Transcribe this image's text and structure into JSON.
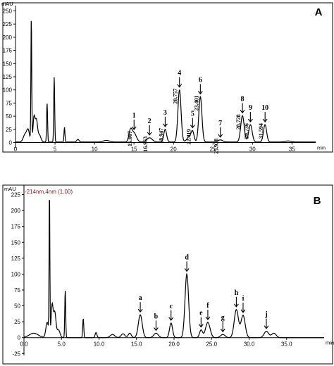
{
  "chart_data": [
    {
      "type": "line",
      "panel_label": "A",
      "ylabel": "mAU",
      "xlabel": "min",
      "xlim": [
        0,
        38
      ],
      "ylim": [
        -10,
        260
      ],
      "x_ticks": [
        0,
        5,
        10,
        15,
        20,
        25,
        30,
        35
      ],
      "x_tick_labels": [
        "0",
        "5",
        "10",
        "15",
        "20",
        "25",
        "30",
        "35"
      ],
      "y_ticks": [
        0,
        25,
        50,
        75,
        100,
        125,
        150,
        175,
        200,
        225,
        250
      ],
      "y_tick_labels": [
        "0",
        "25",
        "50",
        "75",
        "100",
        "125",
        "150",
        "175",
        "200",
        "225",
        "250"
      ],
      "baseline": 1,
      "peaks": [
        {
          "t": 1.2,
          "h": 14,
          "w": 0.22
        },
        {
          "t": 1.6,
          "h": 22,
          "w": 0.18
        },
        {
          "t": 2.0,
          "h": 238,
          "w": 0.05
        },
        {
          "t": 2.35,
          "h": 48,
          "w": 0.13
        },
        {
          "t": 2.65,
          "h": 38,
          "w": 0.13
        },
        {
          "t": 3.0,
          "h": 14,
          "w": 0.2
        },
        {
          "t": 4.0,
          "h": 74,
          "w": 0.06
        },
        {
          "t": 4.9,
          "h": 123,
          "w": 0.06
        },
        {
          "t": 6.2,
          "h": 28,
          "w": 0.06
        },
        {
          "t": 7.9,
          "h": 5,
          "w": 0.15
        },
        {
          "t": 11.5,
          "h": 3,
          "w": 0.4
        },
        {
          "t": 14.55,
          "h": 20,
          "w": 0.2
        },
        {
          "t": 15.0,
          "h": 17,
          "w": 0.3
        },
        {
          "t": 16.96,
          "h": 8,
          "w": 0.35
        },
        {
          "t": 18.95,
          "h": 24,
          "w": 0.18
        },
        {
          "t": 20.76,
          "h": 99,
          "w": 0.2
        },
        {
          "t": 22.0,
          "h": 10,
          "w": 0.3
        },
        {
          "t": 22.42,
          "h": 18,
          "w": 0.18
        },
        {
          "t": 23.4,
          "h": 86,
          "w": 0.2
        },
        {
          "t": 25.93,
          "h": 4,
          "w": 0.3
        },
        {
          "t": 28.73,
          "h": 50,
          "w": 0.22
        },
        {
          "t": 29.74,
          "h": 33,
          "w": 0.22
        },
        {
          "t": 31.59,
          "h": 33,
          "w": 0.2
        },
        {
          "t": 34.5,
          "h": 2,
          "w": 0.4
        }
      ],
      "annotations": [
        {
          "label": "1",
          "rt": "15.007",
          "x": 15.007
        },
        {
          "label": "2",
          "rt": "16.963",
          "x": 16.963
        },
        {
          "label": "3",
          "rt": "18.947",
          "x": 18.947
        },
        {
          "label": "4",
          "rt": "20.757",
          "x": 20.757
        },
        {
          "label": "5",
          "rt": "22.419",
          "x": 22.419
        },
        {
          "label": "6",
          "rt": "23.401",
          "x": 23.401
        },
        {
          "label": "7",
          "rt": "25.928",
          "x": 25.928
        },
        {
          "label": "8",
          "rt": "28.728",
          "x": 28.728
        },
        {
          "label": "9",
          "rt": "29.736",
          "x": 29.736
        },
        {
          "label": "10",
          "rt": "31.594",
          "x": 31.594
        }
      ]
    },
    {
      "type": "line",
      "panel_label": "B",
      "channel_label": "-214nm,4nm (1.00)",
      "ylabel": "mAU",
      "xlabel": "min",
      "xlim": [
        0,
        40
      ],
      "ylim": [
        -28,
        240
      ],
      "x_ticks": [
        0,
        5,
        10,
        15,
        20,
        25,
        30,
        35
      ],
      "x_tick_labels": [
        "0.0",
        "5.0",
        "10.0",
        "15.0",
        "20.0",
        "25.0",
        "30.0",
        "35.0"
      ],
      "y_ticks": [
        -25,
        0,
        25,
        50,
        75,
        100,
        125,
        150,
        175,
        200,
        225
      ],
      "y_tick_labels": [
        "-25",
        "0",
        "25",
        "50",
        "75",
        "100",
        "125",
        "150",
        "175",
        "200",
        "225"
      ],
      "baseline": 0,
      "peaks": [
        {
          "t": 1.3,
          "h": 7,
          "w": 0.6
        },
        {
          "t": 3.1,
          "h": 24,
          "w": 0.18
        },
        {
          "t": 3.4,
          "h": 230,
          "w": 0.05
        },
        {
          "t": 3.75,
          "h": 50,
          "w": 0.13
        },
        {
          "t": 4.1,
          "h": 40,
          "w": 0.16
        },
        {
          "t": 4.6,
          "h": 12,
          "w": 0.2
        },
        {
          "t": 5.5,
          "h": 75,
          "w": 0.06
        },
        {
          "t": 7.9,
          "h": 30,
          "w": 0.07
        },
        {
          "t": 9.6,
          "h": 8,
          "w": 0.12
        },
        {
          "t": 11.8,
          "h": 5,
          "w": 0.3
        },
        {
          "t": 13.2,
          "h": 6,
          "w": 0.25
        },
        {
          "t": 14.1,
          "h": 7,
          "w": 0.2
        },
        {
          "t": 15.5,
          "h": 36,
          "w": 0.26
        },
        {
          "t": 17.6,
          "h": 7,
          "w": 0.3
        },
        {
          "t": 19.6,
          "h": 23,
          "w": 0.2
        },
        {
          "t": 21.7,
          "h": 100,
          "w": 0.24
        },
        {
          "t": 23.6,
          "h": 12,
          "w": 0.2
        },
        {
          "t": 24.5,
          "h": 24,
          "w": 0.3
        },
        {
          "t": 26.5,
          "h": 5,
          "w": 0.3
        },
        {
          "t": 28.3,
          "h": 44,
          "w": 0.28
        },
        {
          "t": 29.2,
          "h": 35,
          "w": 0.28
        },
        {
          "t": 32.3,
          "h": 10,
          "w": 0.3
        },
        {
          "t": 33.3,
          "h": 7,
          "w": 0.3
        }
      ],
      "annotations": [
        {
          "label": "a",
          "x": 15.5
        },
        {
          "label": "b",
          "x": 17.6
        },
        {
          "label": "c",
          "x": 19.6
        },
        {
          "label": "d",
          "x": 21.7
        },
        {
          "label": "e",
          "x": 23.6
        },
        {
          "label": "f",
          "x": 24.5
        },
        {
          "label": "g",
          "x": 26.5
        },
        {
          "label": "h",
          "x": 28.3
        },
        {
          "label": "i",
          "x": 29.2
        },
        {
          "label": "j",
          "x": 32.3
        }
      ]
    }
  ]
}
